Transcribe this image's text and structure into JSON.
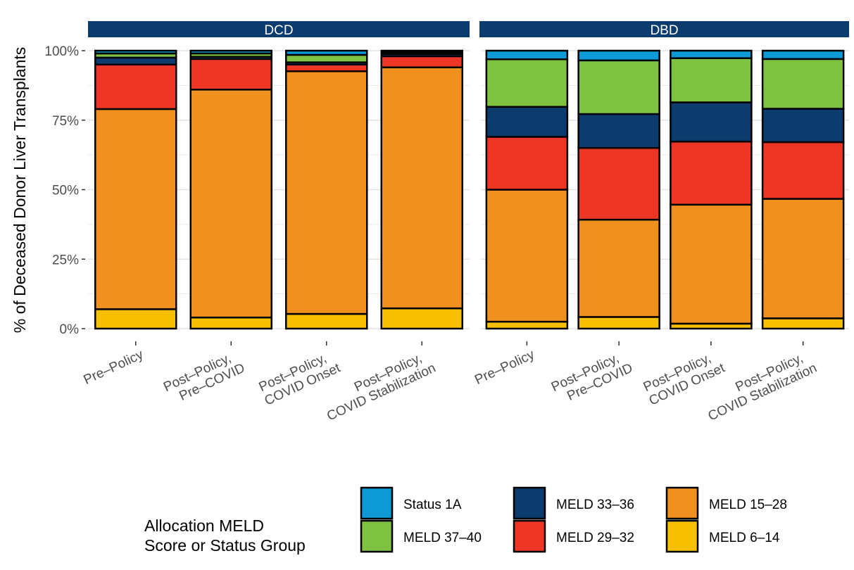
{
  "chart_data": {
    "type": "bar",
    "stacked": true,
    "ylabel": "% of Deceased Donor Liver Transplants",
    "xlabel": "",
    "ylim": [
      0,
      100
    ],
    "yticks": [
      "0%",
      "25%",
      "50%",
      "75%",
      "100%"
    ],
    "ytick_values": [
      0,
      25,
      50,
      75,
      100
    ],
    "grid": true,
    "categories": [
      [
        "Pre–Policy"
      ],
      [
        "Post–Policy,",
        "Pre–COVID"
      ],
      [
        "Post–Policy,",
        "COVID Onset"
      ],
      [
        "Post–Policy,",
        "COVID Stabilization"
      ]
    ],
    "legend": {
      "title": [
        "Allocation MELD",
        "Score or Status Group"
      ],
      "position": "bottom",
      "entries": [
        {
          "name": "Status 1A",
          "color": "#0e9ad7"
        },
        {
          "name": "MELD 33–36",
          "color": "#0c3c6e"
        },
        {
          "name": "MELD 15–28",
          "color": "#f0901e"
        },
        {
          "name": "MELD 37–40",
          "color": "#7fc241"
        },
        {
          "name": "MELD 29–32",
          "color": "#ee3626"
        },
        {
          "name": "MELD 6–14",
          "color": "#f6c000"
        }
      ]
    },
    "stack_order_bottom_to_top": [
      "MELD 6–14",
      "MELD 15–28",
      "MELD 29–32",
      "MELD 33–36",
      "MELD 37–40",
      "Status 1A"
    ],
    "panels": [
      {
        "title": "DCD",
        "series": [
          {
            "name": "MELD 6–14",
            "values": [
              7,
              4,
              5.3,
              7.3
            ]
          },
          {
            "name": "MELD 15–28",
            "values": [
              72,
              82,
              87.3,
              86.7
            ]
          },
          {
            "name": "MELD 29–32",
            "values": [
              16,
              11,
              2.4,
              4
            ]
          },
          {
            "name": "MELD 33–36",
            "values": [
              2.5,
              0.8,
              0.8,
              0.8
            ]
          },
          {
            "name": "MELD 37–40",
            "values": [
              1.5,
              1.2,
              2.7,
              0.6
            ]
          },
          {
            "name": "Status 1A",
            "values": [
              1,
              1,
              1.5,
              0.6
            ]
          }
        ]
      },
      {
        "title": "DBD",
        "series": [
          {
            "name": "MELD 6–14",
            "values": [
              2.5,
              4.2,
              1.8,
              3.7
            ]
          },
          {
            "name": "MELD 15–28",
            "values": [
              47.5,
              35,
              42.8,
              43
            ]
          },
          {
            "name": "MELD 29–32",
            "values": [
              19,
              25.8,
              22.7,
              20.4
            ]
          },
          {
            "name": "MELD 33–36",
            "values": [
              10.8,
              12.2,
              14.1,
              12
            ]
          },
          {
            "name": "MELD 37–40",
            "values": [
              17.1,
              19.3,
              15.9,
              17.9
            ]
          },
          {
            "name": "Status 1A",
            "values": [
              3.1,
              3.5,
              2.7,
              3
            ]
          }
        ]
      }
    ],
    "colors": {
      "strip": "#0c3c6e",
      "strip_text": "#ffffff",
      "grid": "#e3e3e3",
      "axis_text": "#4d4d4d"
    }
  }
}
